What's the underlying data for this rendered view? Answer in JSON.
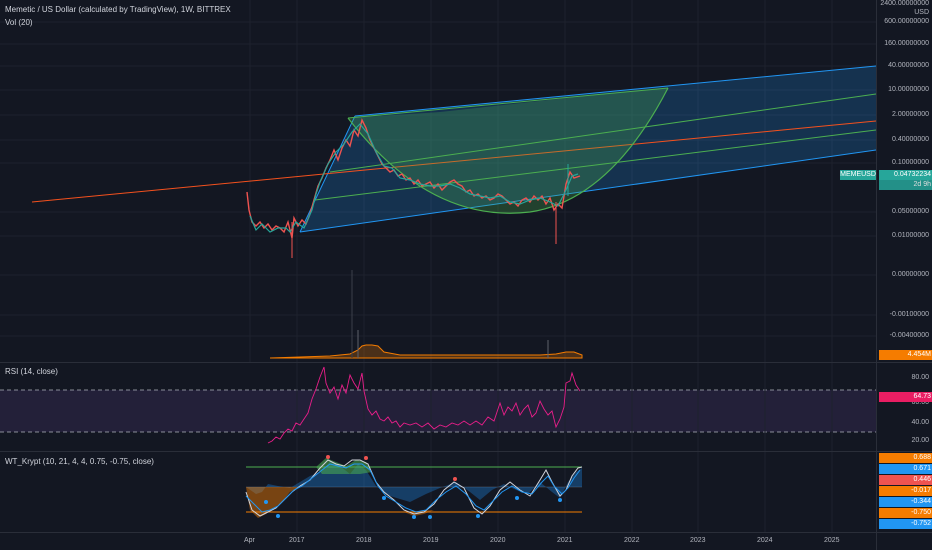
{
  "main": {
    "title": "Memetic / US Dollar (calculated by TradingView), 1W, BITTREX",
    "vol_label": "Vol (20)",
    "currency": "USD",
    "y_labels": [
      "2400.00000000",
      "600.00000000",
      "160.00000000",
      "40.00000000",
      "10.00000000",
      "2.00000000",
      "0.40000000",
      "0.10000000",
      "0.05000000",
      "0.01000000",
      "0.00000000",
      "-0.00100000",
      "-0.00400000"
    ],
    "price_tag": "0.04732234",
    "symbol_tag": "MEMEUSD",
    "countdown": "2d 9h",
    "volume_tag": "4.454M"
  },
  "rsi": {
    "title": "RSI (14, close)",
    "y_labels": [
      "80.00",
      "60.00",
      "40.00",
      "20.00"
    ],
    "value_tag": "64.73"
  },
  "wt": {
    "title": "WT_Krypt (10, 21, 4, 4, 0.75, -0.75, close)",
    "tags": [
      "0.688",
      "0.671",
      "0.446",
      "-0.017",
      "-0.344",
      "-0.750",
      "-0.752"
    ]
  },
  "x_axis": [
    "Apr",
    "2017",
    "2018",
    "2019",
    "2020",
    "2021",
    "2022",
    "2023",
    "2024",
    "2025"
  ],
  "colors": {
    "background": "#131722",
    "candle_up": "#26a69a",
    "candle_down": "#ef5350",
    "rsi_line": "#e91e8a",
    "rsi_band": "#7e57c2",
    "channel_blue": "#2196f3",
    "channel_green": "#4caf50",
    "tag_teal": "#26a69a",
    "tag_orange": "#f57c00",
    "tag_blue": "#2196f3",
    "tag_pink": "#e91e63"
  }
}
